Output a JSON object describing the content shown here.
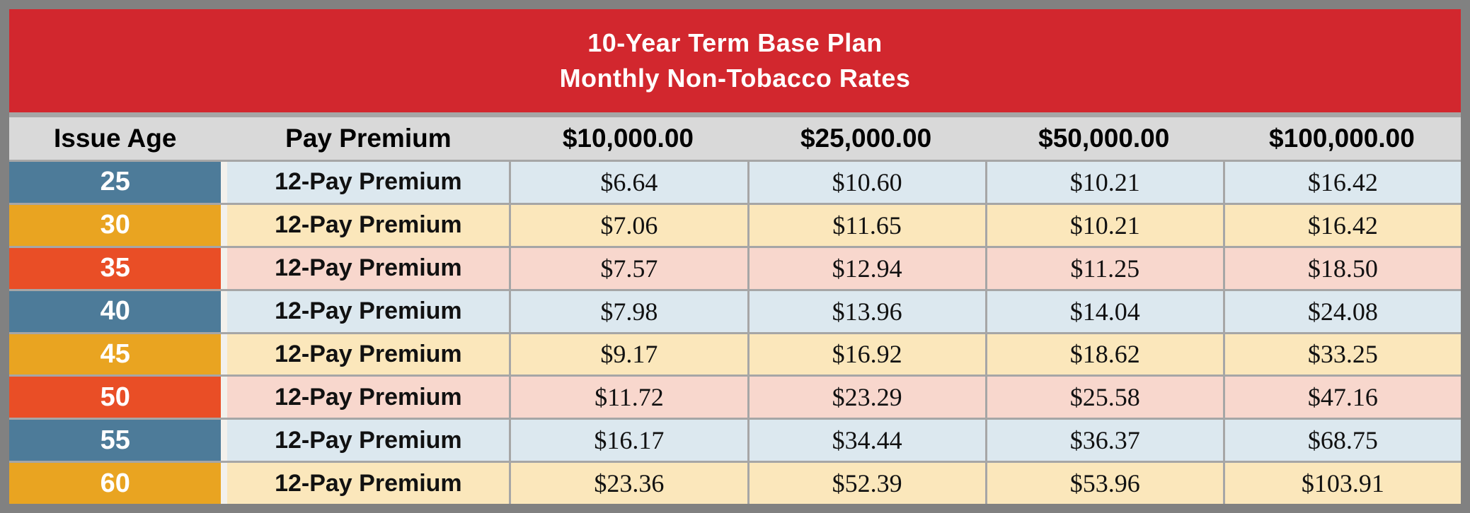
{
  "title": {
    "line1": "10-Year Term Base Plan",
    "line2": "Monthly Non-Tobacco Rates"
  },
  "colors": {
    "outer_border": "#818181",
    "banner_red": "#d2272e",
    "header_gray": "#d9d9d9",
    "divider_gray": "#a6a6a6",
    "age_blue": "#4d7b99",
    "age_amber": "#e9a421",
    "age_orange_red": "#e94e26",
    "row_tint_blue": "#dce8ef",
    "row_tint_amber": "#fbe7bb",
    "row_tint_pink": "#f8d7cd",
    "title_text": "#ffffff",
    "age_text": "#ffffff",
    "data_text": "#111111"
  },
  "chart_data": {
    "type": "table",
    "title": "10-Year Term Base Plan Monthly Non-Tobacco Rates",
    "columns": [
      "Issue Age",
      "Pay Premium",
      "$10,000.00",
      "$25,000.00",
      "$50,000.00",
      "$100,000.00"
    ],
    "rows": [
      {
        "age": "25",
        "theme": "blue",
        "premium_label": "12-Pay Premium",
        "values": [
          "$6.64",
          "$10.60",
          "$10.21",
          "$16.42"
        ]
      },
      {
        "age": "30",
        "theme": "amber",
        "premium_label": "12-Pay Premium",
        "values": [
          "$7.06",
          "$11.65",
          "$10.21",
          "$16.42"
        ]
      },
      {
        "age": "35",
        "theme": "red",
        "premium_label": "12-Pay Premium",
        "values": [
          "$7.57",
          "$12.94",
          "$11.25",
          "$18.50"
        ]
      },
      {
        "age": "40",
        "theme": "blue",
        "premium_label": "12-Pay Premium",
        "values": [
          "$7.98",
          "$13.96",
          "$14.04",
          "$24.08"
        ]
      },
      {
        "age": "45",
        "theme": "amber",
        "premium_label": "12-Pay Premium",
        "values": [
          "$9.17",
          "$16.92",
          "$18.62",
          "$33.25"
        ]
      },
      {
        "age": "50",
        "theme": "red",
        "premium_label": "12-Pay Premium",
        "values": [
          "$11.72",
          "$23.29",
          "$25.58",
          "$47.16"
        ]
      },
      {
        "age": "55",
        "theme": "blue",
        "premium_label": "12-Pay Premium",
        "values": [
          "$16.17",
          "$34.44",
          "$36.37",
          "$68.75"
        ]
      },
      {
        "age": "60",
        "theme": "amber",
        "premium_label": "12-Pay Premium",
        "values": [
          "$23.36",
          "$52.39",
          "$53.96",
          "$103.91"
        ]
      }
    ]
  }
}
